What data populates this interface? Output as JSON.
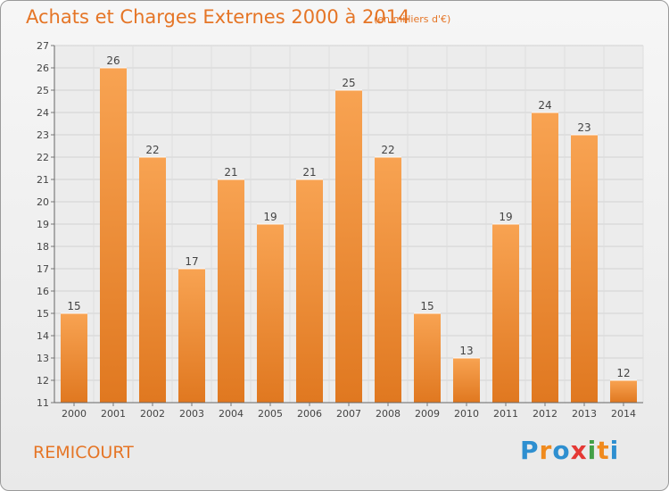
{
  "title": "Achats et Charges Externes 2000 à 2014",
  "subtitle": "(en milliers d'€)",
  "location": "REMICOURT",
  "logo": {
    "text": "Proxiti",
    "letters": [
      {
        "ch": "P",
        "color": "#2e8fd0"
      },
      {
        "ch": "r",
        "color": "#f08a1d"
      },
      {
        "ch": "o",
        "color": "#2e8fd0"
      },
      {
        "ch": "x",
        "color": "#e53935"
      },
      {
        "ch": "i",
        "color": "#43a047"
      },
      {
        "ch": "t",
        "color": "#f08a1d"
      },
      {
        "ch": "i",
        "color": "#2e8fd0"
      }
    ]
  },
  "colors": {
    "bar_light": "#f8a352",
    "bar_dark": "#e07820",
    "title": "#e57526"
  },
  "chart_data": {
    "type": "bar",
    "categories": [
      "2000",
      "2001",
      "2002",
      "2003",
      "2004",
      "2005",
      "2006",
      "2007",
      "2008",
      "2009",
      "2010",
      "2011",
      "2012",
      "2013",
      "2014"
    ],
    "values": [
      15,
      26,
      22,
      17,
      21,
      19,
      21,
      25,
      22,
      15,
      13,
      19,
      24,
      23,
      12
    ],
    "ylim": [
      11,
      27
    ],
    "yticks": [
      11,
      12,
      13,
      14,
      15,
      16,
      17,
      18,
      19,
      20,
      21,
      22,
      23,
      24,
      25,
      26,
      27
    ],
    "grid": true,
    "legend": "none"
  }
}
